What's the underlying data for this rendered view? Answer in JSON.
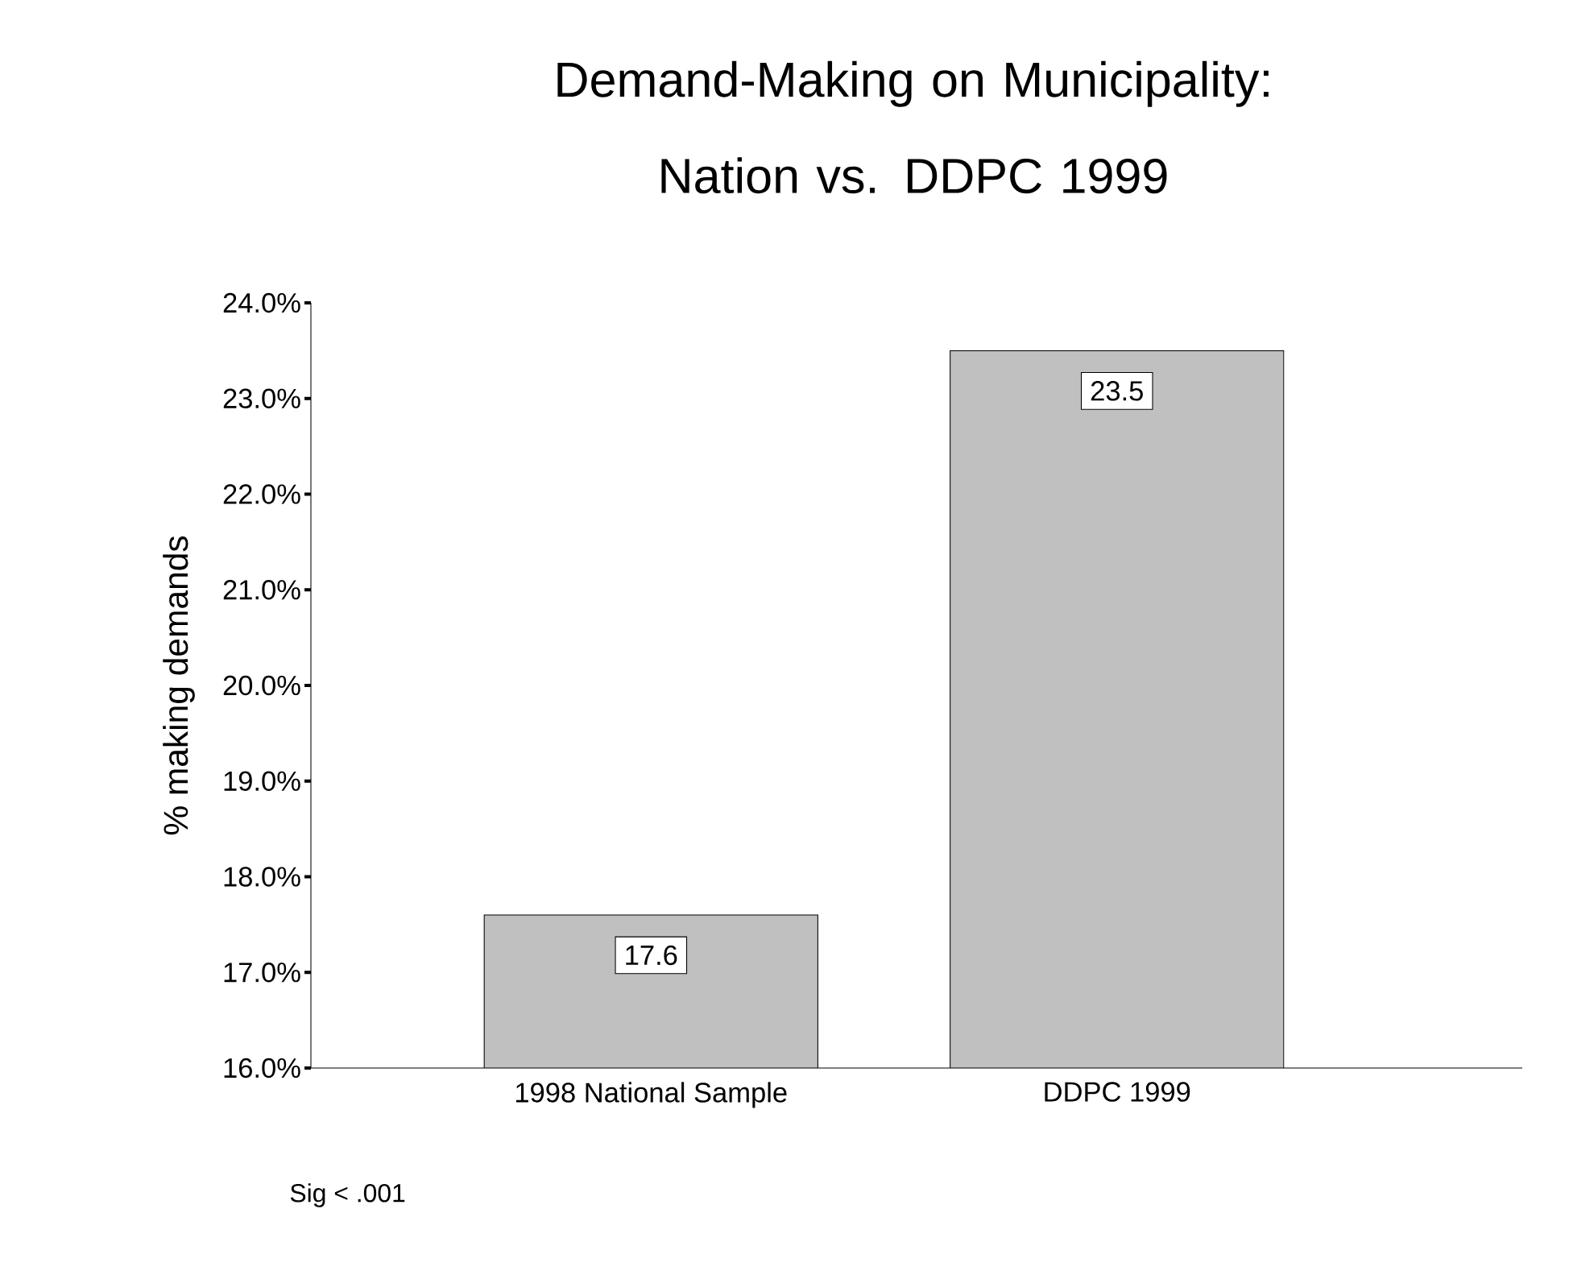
{
  "chart_data": {
    "type": "bar",
    "title": "Demand-Making on Municipality: Nation vs. DDPC 1999",
    "ylabel": "% making demands",
    "categories": [
      "1998 National Sample",
      "DDPC 1999"
    ],
    "values": [
      17.6,
      23.5
    ],
    "color": "#c0c0c0",
    "data_labels": true,
    "grid": false,
    "ylim": [
      16,
      24
    ],
    "yticks": [
      {
        "value": 16,
        "label": "16.0%"
      },
      {
        "value": 17,
        "label": "17.0%"
      },
      {
        "value": 18,
        "label": "18.0%"
      },
      {
        "value": 19,
        "label": "19.0%"
      },
      {
        "value": 20,
        "label": "20.0%"
      },
      {
        "value": 21,
        "label": "21.0%"
      },
      {
        "value": 22,
        "label": "22.0%"
      },
      {
        "value": 23,
        "label": "23.0%"
      },
      {
        "value": 24,
        "label": "24.0%"
      }
    ],
    "annotations": [
      "Sig < .001"
    ]
  }
}
